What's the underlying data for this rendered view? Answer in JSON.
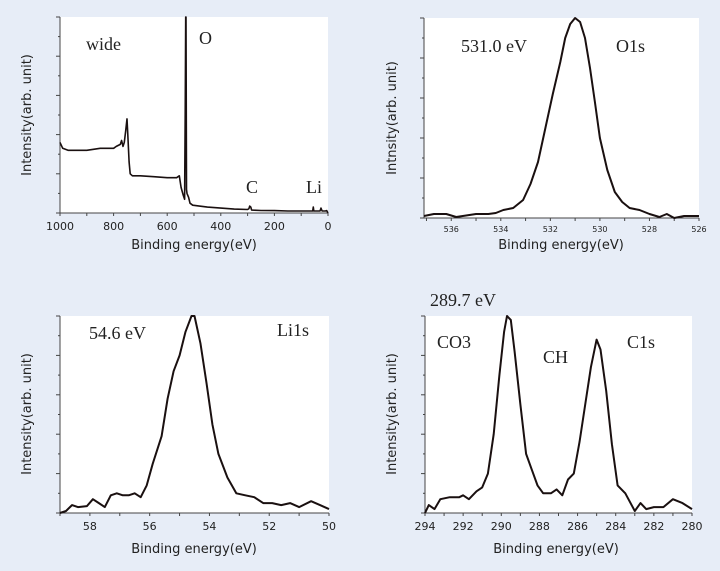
{
  "chart_data": [
    {
      "type": "line",
      "xlabel": "Binding energy(eV)",
      "ylabel": "Intensity(arb. unit)",
      "xlim": [
        1000,
        0
      ],
      "ylim": [
        0,
        1
      ],
      "x_reversed": true,
      "xticks": [
        1000,
        800,
        600,
        400,
        200,
        0
      ],
      "grid": false,
      "annotations": [
        "wide",
        "O",
        "C",
        "Li"
      ],
      "x": [
        1000,
        990,
        970,
        950,
        900,
        850,
        800,
        790,
        775,
        770,
        765,
        760,
        755,
        750,
        747,
        742,
        738,
        730,
        700,
        650,
        600,
        565,
        555,
        548,
        540,
        535,
        533,
        531,
        530,
        528,
        526,
        523,
        520,
        515,
        505,
        480,
        450,
        400,
        350,
        300,
        295,
        292,
        288,
        285,
        250,
        200,
        150,
        100,
        60,
        57,
        55,
        53,
        40,
        30,
        26,
        22,
        18,
        10,
        5,
        0
      ],
      "values": [
        0.36,
        0.33,
        0.32,
        0.32,
        0.32,
        0.33,
        0.33,
        0.34,
        0.35,
        0.37,
        0.34,
        0.36,
        0.42,
        0.48,
        0.4,
        0.26,
        0.2,
        0.19,
        0.19,
        0.185,
        0.18,
        0.18,
        0.19,
        0.13,
        0.09,
        0.07,
        0.5,
        1.0,
        1.0,
        0.12,
        0.1,
        0.09,
        0.08,
        0.05,
        0.04,
        0.035,
        0.03,
        0.025,
        0.02,
        0.018,
        0.022,
        0.035,
        0.03,
        0.015,
        0.013,
        0.012,
        0.01,
        0.01,
        0.01,
        0.01,
        0.03,
        0.01,
        0.01,
        0.01,
        0.025,
        0.01,
        0.01,
        0.01,
        0.012,
        0.0
      ]
    },
    {
      "type": "line",
      "xlabel": "Binding energy(eV)",
      "ylabel": "Intnsity(arb. unit)",
      "xlim": [
        537.1,
        526
      ],
      "ylim": [
        0,
        1
      ],
      "x_reversed": true,
      "xticks": [
        536,
        534,
        532,
        530,
        528,
        526
      ],
      "grid": false,
      "annotations": [
        "531.0 eV",
        "O1s"
      ],
      "x": [
        537.1,
        536.7,
        536.2,
        535.8,
        535.0,
        534.5,
        534.2,
        533.9,
        533.5,
        533.1,
        532.8,
        532.5,
        532.2,
        531.9,
        531.6,
        531.4,
        531.2,
        531.0,
        530.8,
        530.6,
        530.4,
        530.2,
        530.0,
        529.7,
        529.4,
        529.1,
        528.8,
        528.4,
        528.0,
        527.6,
        527.3,
        527.0,
        526.6,
        526.0
      ],
      "values": [
        0.01,
        0.02,
        0.02,
        0.005,
        0.02,
        0.02,
        0.025,
        0.04,
        0.05,
        0.09,
        0.17,
        0.28,
        0.45,
        0.62,
        0.78,
        0.9,
        0.97,
        1.0,
        0.98,
        0.9,
        0.75,
        0.58,
        0.4,
        0.24,
        0.13,
        0.08,
        0.05,
        0.04,
        0.02,
        0.005,
        0.02,
        0.0,
        0.01,
        0.01
      ]
    },
    {
      "type": "line",
      "xlabel": "Binding energy(eV)",
      "ylabel": "Intensity(arb. unit)",
      "xlim": [
        59,
        50
      ],
      "ylim": [
        0,
        1
      ],
      "x_reversed": true,
      "xticks": [
        58,
        56,
        54,
        52,
        50
      ],
      "grid": false,
      "annotations": [
        "54.6 eV",
        "Li1s"
      ],
      "x": [
        59.0,
        58.8,
        58.6,
        58.4,
        58.1,
        57.9,
        57.7,
        57.5,
        57.3,
        57.1,
        56.9,
        56.7,
        56.5,
        56.3,
        56.1,
        55.9,
        55.6,
        55.4,
        55.2,
        55.0,
        54.8,
        54.6,
        54.5,
        54.3,
        54.1,
        53.9,
        53.7,
        53.4,
        53.1,
        52.8,
        52.5,
        52.2,
        51.9,
        51.6,
        51.3,
        51.0,
        50.6,
        50.3,
        50.0
      ],
      "values": [
        0.0,
        0.01,
        0.04,
        0.03,
        0.035,
        0.07,
        0.05,
        0.03,
        0.09,
        0.1,
        0.09,
        0.09,
        0.1,
        0.08,
        0.14,
        0.25,
        0.39,
        0.58,
        0.72,
        0.8,
        0.92,
        1.0,
        1.0,
        0.86,
        0.66,
        0.45,
        0.3,
        0.18,
        0.1,
        0.09,
        0.08,
        0.05,
        0.05,
        0.04,
        0.05,
        0.03,
        0.06,
        0.04,
        0.02
      ]
    },
    {
      "type": "line",
      "xlabel": "Binding energy(eV)",
      "ylabel": "Intensity(arb. unit)",
      "xlim": [
        294,
        280
      ],
      "ylim": [
        0,
        1
      ],
      "x_reversed": true,
      "xticks": [
        294,
        292,
        290,
        288,
        286,
        284,
        282,
        280
      ],
      "grid": false,
      "annotations": [
        "289.7 eV",
        "CO3",
        "CH",
        "C1s"
      ],
      "x": [
        294.0,
        293.8,
        293.5,
        293.2,
        292.7,
        292.2,
        292.0,
        291.7,
        291.3,
        291.0,
        290.7,
        290.4,
        290.1,
        289.85,
        289.7,
        289.5,
        289.3,
        289.0,
        288.7,
        288.4,
        288.1,
        287.8,
        287.4,
        287.1,
        286.8,
        286.5,
        286.2,
        285.9,
        285.6,
        285.3,
        285.0,
        284.8,
        284.5,
        284.2,
        283.9,
        283.5,
        283.0,
        282.7,
        282.4,
        282.0,
        281.5,
        281.0,
        280.5,
        280.0
      ],
      "values": [
        0.0,
        0.04,
        0.02,
        0.07,
        0.08,
        0.08,
        0.09,
        0.07,
        0.11,
        0.13,
        0.2,
        0.4,
        0.7,
        0.92,
        1.0,
        0.98,
        0.82,
        0.55,
        0.3,
        0.22,
        0.14,
        0.1,
        0.1,
        0.12,
        0.09,
        0.17,
        0.2,
        0.36,
        0.55,
        0.74,
        0.88,
        0.83,
        0.62,
        0.35,
        0.14,
        0.1,
        0.01,
        0.05,
        0.02,
        0.03,
        0.03,
        0.07,
        0.05,
        0.02
      ]
    }
  ]
}
